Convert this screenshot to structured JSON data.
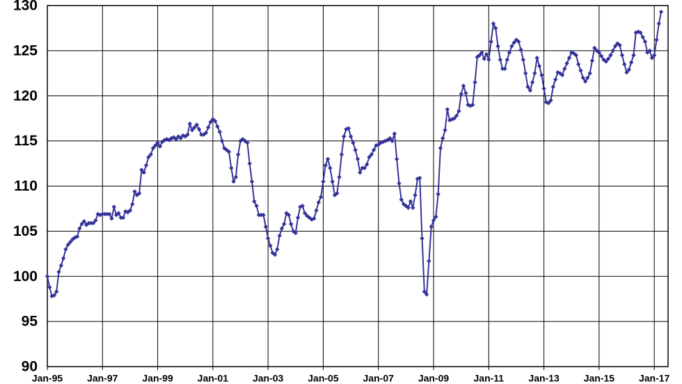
{
  "chart_data": {
    "type": "line",
    "x": [
      "1995-01",
      "1995-02",
      "1995-03",
      "1995-04",
      "1995-05",
      "1995-06",
      "1995-07",
      "1995-08",
      "1995-09",
      "1995-10",
      "1995-11",
      "1995-12",
      "1996-01",
      "1996-02",
      "1996-03",
      "1996-04",
      "1996-05",
      "1996-06",
      "1996-07",
      "1996-08",
      "1996-09",
      "1996-10",
      "1996-11",
      "1996-12",
      "1997-01",
      "1997-02",
      "1997-03",
      "1997-04",
      "1997-05",
      "1997-06",
      "1997-07",
      "1997-08",
      "1997-09",
      "1997-10",
      "1997-11",
      "1997-12",
      "1998-01",
      "1998-02",
      "1998-03",
      "1998-04",
      "1998-05",
      "1998-06",
      "1998-07",
      "1998-08",
      "1998-09",
      "1998-10",
      "1998-11",
      "1998-12",
      "1999-01",
      "1999-02",
      "1999-03",
      "1999-04",
      "1999-05",
      "1999-06",
      "1999-07",
      "1999-08",
      "1999-09",
      "1999-10",
      "1999-11",
      "1999-12",
      "2000-01",
      "2000-02",
      "2000-03",
      "2000-04",
      "2000-05",
      "2000-06",
      "2000-07",
      "2000-08",
      "2000-09",
      "2000-10",
      "2000-11",
      "2000-12",
      "2001-01",
      "2001-02",
      "2001-03",
      "2001-04",
      "2001-05",
      "2001-06",
      "2001-07",
      "2001-08",
      "2001-09",
      "2001-10",
      "2001-11",
      "2001-12",
      "2002-01",
      "2002-02",
      "2002-03",
      "2002-04",
      "2002-05",
      "2002-06",
      "2002-07",
      "2002-08",
      "2002-09",
      "2002-10",
      "2002-11",
      "2002-12",
      "2003-01",
      "2003-02",
      "2003-03",
      "2003-04",
      "2003-05",
      "2003-06",
      "2003-07",
      "2003-08",
      "2003-09",
      "2003-10",
      "2003-11",
      "2003-12",
      "2004-01",
      "2004-02",
      "2004-03",
      "2004-04",
      "2004-05",
      "2004-06",
      "2004-07",
      "2004-08",
      "2004-09",
      "2004-10",
      "2004-11",
      "2004-12",
      "2005-01",
      "2005-02",
      "2005-03",
      "2005-04",
      "2005-05",
      "2005-06",
      "2005-07",
      "2005-08",
      "2005-09",
      "2005-10",
      "2005-11",
      "2005-12",
      "2006-01",
      "2006-02",
      "2006-03",
      "2006-04",
      "2006-05",
      "2006-06",
      "2006-07",
      "2006-08",
      "2006-09",
      "2006-10",
      "2006-11",
      "2006-12",
      "2007-01",
      "2007-02",
      "2007-03",
      "2007-04",
      "2007-05",
      "2007-06",
      "2007-07",
      "2007-08",
      "2007-09",
      "2007-10",
      "2007-11",
      "2007-12",
      "2008-01",
      "2008-02",
      "2008-03",
      "2008-04",
      "2008-05",
      "2008-06",
      "2008-07",
      "2008-08",
      "2008-09",
      "2008-10",
      "2008-11",
      "2008-12",
      "2009-01",
      "2009-02",
      "2009-03",
      "2009-04",
      "2009-05",
      "2009-06",
      "2009-07",
      "2009-08",
      "2009-09",
      "2009-10",
      "2009-11",
      "2009-12",
      "2010-01",
      "2010-02",
      "2010-03",
      "2010-04",
      "2010-05",
      "2010-06",
      "2010-07",
      "2010-08",
      "2010-09",
      "2010-10",
      "2010-11",
      "2010-12",
      "2011-01",
      "2011-02",
      "2011-03",
      "2011-04",
      "2011-05",
      "2011-06",
      "2011-07",
      "2011-08",
      "2011-09",
      "2011-10",
      "2011-11",
      "2011-12",
      "2012-01",
      "2012-02",
      "2012-03",
      "2012-04",
      "2012-05",
      "2012-06",
      "2012-07",
      "2012-08",
      "2012-09",
      "2012-10",
      "2012-11",
      "2012-12",
      "2013-01",
      "2013-02",
      "2013-03",
      "2013-04",
      "2013-05",
      "2013-06",
      "2013-07",
      "2013-08",
      "2013-09",
      "2013-10",
      "2013-11",
      "2013-12",
      "2014-01",
      "2014-02",
      "2014-03",
      "2014-04",
      "2014-05",
      "2014-06",
      "2014-07",
      "2014-08",
      "2014-09",
      "2014-10",
      "2014-11",
      "2014-12",
      "2015-01",
      "2015-02",
      "2015-03",
      "2015-04",
      "2015-05",
      "2015-06",
      "2015-07",
      "2015-08",
      "2015-09",
      "2015-10",
      "2015-11",
      "2015-12",
      "2016-01",
      "2016-02",
      "2016-03",
      "2016-04",
      "2016-05",
      "2016-06",
      "2016-07",
      "2016-08",
      "2016-09",
      "2016-10",
      "2016-11",
      "2016-12",
      "2017-01",
      "2017-02",
      "2017-03",
      "2017-04"
    ],
    "series": [
      {
        "color": "#333399",
        "values": [
          100,
          98.8,
          97.8,
          97.9,
          98.3,
          100.5,
          101.2,
          102,
          103,
          103.5,
          103.8,
          104.1,
          104.3,
          104.4,
          105.3,
          105.8,
          106.1,
          105.7,
          105.9,
          105.9,
          105.9,
          106.2,
          106.9,
          106.8,
          106.9,
          106.9,
          106.9,
          106.9,
          106.4,
          107.7,
          106.8,
          107,
          106.5,
          106.5,
          107.2,
          107.1,
          107.3,
          108,
          109.4,
          109,
          109.2,
          111.8,
          111.5,
          112.3,
          113.2,
          113.5,
          114.2,
          114.5,
          114.8,
          114.4,
          114.9,
          115.1,
          115.2,
          115.1,
          115.3,
          115.4,
          115.2,
          115.5,
          115.3,
          115.6,
          115.5,
          115.7,
          116.9,
          116.2,
          116.5,
          116.8,
          116.3,
          115.7,
          115.7,
          115.9,
          116.5,
          117.1,
          117.4,
          117.2,
          116.6,
          116,
          115,
          114.2,
          114,
          113.8,
          112,
          110.5,
          111,
          113.5,
          115,
          115.2,
          115,
          114.8,
          112.5,
          110.5,
          108.3,
          107.8,
          106.8,
          106.8,
          106.8,
          105.5,
          104.2,
          103.4,
          102.6,
          102.4,
          103,
          104.5,
          105.3,
          105.8,
          107,
          106.8,
          105.8,
          105,
          104.8,
          106.5,
          107.7,
          107.8,
          107,
          106.7,
          106.5,
          106.3,
          106.4,
          107.3,
          108.2,
          108.8,
          110.5,
          112.3,
          113,
          112,
          110.5,
          109,
          109.2,
          111,
          113.5,
          115.5,
          116.3,
          116.4,
          115.5,
          114.8,
          114,
          113,
          111.5,
          112,
          112,
          112.4,
          113.2,
          113.5,
          114,
          114.5,
          114.6,
          114.8,
          114.9,
          115,
          115.1,
          115.3,
          115,
          115.8,
          113,
          110.3,
          108.5,
          108,
          107.8,
          107.6,
          108.3,
          107.6,
          109,
          110.8,
          110.9,
          104.2,
          98.3,
          98,
          101.7,
          105.5,
          106.2,
          106.6,
          109.1,
          114.2,
          115.3,
          116.2,
          118.5,
          117.3,
          117.4,
          117.5,
          117.8,
          118.3,
          120.2,
          121.1,
          120.3,
          119,
          118.9,
          119,
          121.5,
          124.3,
          124.5,
          124.8,
          124.1,
          124.6,
          124,
          126,
          128,
          127.5,
          125.5,
          124,
          123,
          123,
          124,
          124.8,
          125.5,
          125.9,
          126.2,
          126,
          125.1,
          124,
          122.5,
          121,
          120.6,
          121.5,
          122.5,
          124.2,
          123.3,
          122.3,
          120.8,
          119.3,
          119.2,
          119.5,
          121,
          121.8,
          122.6,
          122.5,
          122.3,
          123,
          123.6,
          124.2,
          124.8,
          124.7,
          124.5,
          123.5,
          122.8,
          122,
          121.6,
          122,
          122.5,
          123.9,
          125.3,
          125,
          124.8,
          124.4,
          124,
          123.8,
          124.1,
          124.5,
          125,
          125.5,
          125.8,
          125.6,
          124.5,
          123.5,
          122.6,
          122.9,
          123.7,
          124.5,
          127,
          127.1,
          127,
          126.5,
          126,
          124.8,
          125,
          124.2,
          124.5,
          126.2,
          128,
          129.3
        ]
      }
    ],
    "xlim": [
      "1995-01",
      "2017-07"
    ],
    "xticks": [
      {
        "value": "1995-01",
        "label": "Jan-95"
      },
      {
        "value": "1997-01",
        "label": "Jan-97"
      },
      {
        "value": "1999-01",
        "label": "Jan-99"
      },
      {
        "value": "2001-01",
        "label": "Jan-01"
      },
      {
        "value": "2003-01",
        "label": "Jan-03"
      },
      {
        "value": "2005-01",
        "label": "Jan-05"
      },
      {
        "value": "2007-01",
        "label": "Jan-07"
      },
      {
        "value": "2009-01",
        "label": "Jan-09"
      },
      {
        "value": "2011-01",
        "label": "Jan-11"
      },
      {
        "value": "2013-01",
        "label": "Jan-13"
      },
      {
        "value": "2015-01",
        "label": "Jan-15"
      },
      {
        "value": "2017-01",
        "label": "Jan-17"
      }
    ],
    "ylim": [
      90,
      130
    ],
    "yticks": [
      90,
      95,
      100,
      105,
      110,
      115,
      120,
      125,
      130
    ],
    "grid": true
  }
}
